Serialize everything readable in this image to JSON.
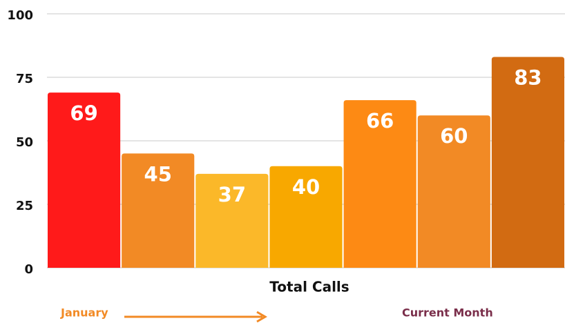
{
  "chart_data": {
    "type": "bar",
    "categories": [
      null,
      null,
      null,
      null,
      null,
      null,
      null
    ],
    "values": [
      69,
      45,
      37,
      40,
      66,
      60,
      83
    ],
    "colors": [
      "#ff1a1a",
      "#f28a25",
      "#fbb829",
      "#f8a800",
      "#fd8a14",
      "#f28a25",
      "#d26b12"
    ],
    "ylim": [
      0,
      100
    ],
    "yticks": [
      0,
      25,
      50,
      75,
      100
    ],
    "grid": true,
    "x_label": "Total Calls",
    "annotations": [
      "January",
      "Current Month"
    ]
  }
}
